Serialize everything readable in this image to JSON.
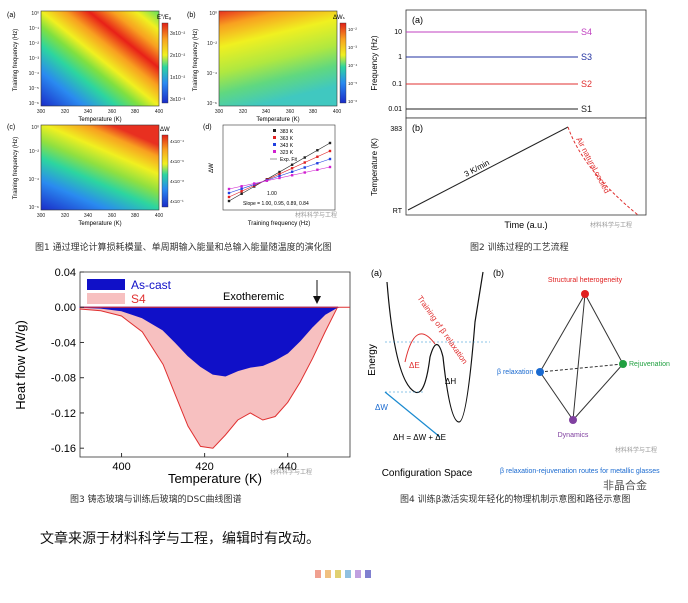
{
  "fig1": {
    "caption": "图1 通过理论计算损耗模量、单周期输入能量和总输入能量随温度的演化图",
    "panels": [
      {
        "tag": "(a)",
        "cbar_label": "E″/Eₐ",
        "cbar_ticks": [
          "3x10⁻²",
          "2x10⁻²",
          "1x10⁻²",
          "3x10⁻³"
        ],
        "xlabel": "Temperature (K)",
        "ylabel": "Training frequency (Hz)"
      },
      {
        "tag": "(b)",
        "cbar_label": "ΔWₛ",
        "cbar_ticks": [
          "10⁻²",
          "10⁻³",
          "10⁻⁴",
          "10⁻⁵",
          "10⁻⁶"
        ],
        "xlabel": "Temperature (K)",
        "ylabel": "Training frequency (Hz)"
      },
      {
        "tag": "(c)",
        "cbar_label": "ΔW",
        "cbar_ticks": [
          "4x10⁻⁴",
          "4x10⁻⁶",
          "4x10⁻⁸",
          "4x10⁻¹"
        ],
        "xlabel": "Temperature (K)",
        "ylabel": "Training frequency (Hz)"
      },
      {
        "tag": "(d)",
        "xlabel": "Training frequency (Hz)",
        "ylabel": "ΔW",
        "slope_text": "Slope = 1.00, 0.95, 0.89, 0.84",
        "one_text": "1.00",
        "exp_fit": "Exp. Fit"
      }
    ],
    "temp_ticks": [
      "300",
      "320",
      "340",
      "360",
      "380",
      "400"
    ],
    "freq_ticks": [
      "10⁰",
      "10⁻¹",
      "10⁻²",
      "10⁻³",
      "10⁻⁴",
      "10⁻⁵",
      "10⁻⁶"
    ],
    "legend": [
      {
        "label": "383 K",
        "color": "#222222"
      },
      {
        "label": "363 K",
        "color": "#e02020"
      },
      {
        "label": "343 K",
        "color": "#2040e0"
      },
      {
        "label": "323 K",
        "color": "#d020d0"
      }
    ],
    "watermark": "材料科学与工程"
  },
  "fig2": {
    "caption": "图2 训练过程的工艺流程",
    "tag_a": "(a)",
    "tag_b": "(b)",
    "ylabel_a": "Frequency (Hz)",
    "ylabel_b": "Temperature (K)",
    "freq_ticks": [
      "10",
      "1",
      "0.1",
      "0.01"
    ],
    "steps": [
      {
        "label": "S4",
        "color": "#c040c0"
      },
      {
        "label": "S3",
        "color": "#2030a0"
      },
      {
        "label": "S2",
        "color": "#e03030"
      },
      {
        "label": "S1",
        "color": "#222222"
      }
    ],
    "temp_top": "383",
    "temp_bottom": "RT",
    "rate": "3 K/min",
    "cool": "Air natural cooled",
    "xlabel": "Time (a.u.)",
    "watermark": "材料科学与工程"
  },
  "fig3": {
    "caption": "图3 铸态玻璃与训练后玻璃的DSC曲线图谱",
    "legend": [
      {
        "label": "As-cast",
        "color": "#1010c8"
      },
      {
        "label": "S4",
        "color": "#f7c0c0"
      }
    ],
    "annotation": "Exotheremic",
    "xlabel": "Temperature (K)",
    "ylabel": "Heat flow (W/g)",
    "watermark": "材料科学与工程"
  },
  "chart_data": {
    "type": "area",
    "title": "",
    "xlabel": "Temperature (K)",
    "ylabel": "Heat flow (W/g)",
    "xlim": [
      390,
      455
    ],
    "ylim": [
      -0.17,
      0.04
    ],
    "x_ticks": [
      400,
      420,
      440
    ],
    "y_ticks": [
      0.04,
      0.0,
      -0.04,
      -0.08,
      -0.12,
      -0.16
    ],
    "x": [
      390,
      395,
      400,
      405,
      410,
      413,
      416,
      419,
      422,
      425,
      428,
      431,
      434,
      437,
      440,
      443,
      446,
      449,
      452
    ],
    "series": [
      {
        "name": "As-cast",
        "values": [
          0.0,
          -0.001,
          -0.004,
          -0.012,
          -0.026,
          -0.04,
          -0.055,
          -0.067,
          -0.076,
          -0.078,
          -0.072,
          -0.068,
          -0.066,
          -0.06,
          -0.052,
          -0.038,
          -0.022,
          -0.008,
          0.0
        ]
      },
      {
        "name": "S4",
        "values": [
          -0.002,
          -0.004,
          -0.01,
          -0.028,
          -0.065,
          -0.1,
          -0.135,
          -0.158,
          -0.16,
          -0.145,
          -0.128,
          -0.12,
          -0.128,
          -0.124,
          -0.108,
          -0.085,
          -0.058,
          -0.028,
          0.0
        ]
      }
    ]
  },
  "fig4": {
    "caption": "图4 训练β激活实现年轻化的物理机制示意图和路径示意图",
    "tag_a": "(a)",
    "tag_b": "(b)",
    "ylabel": "Energy",
    "xlabel": "Configuration Space",
    "training": "Training of β relaxation",
    "dE": "ΔE",
    "dH": "ΔH",
    "dW": "ΔW",
    "eq": "ΔH = ΔW + ΔE",
    "nodes": {
      "top": "Structural heterogeneity",
      "left": "β relaxation",
      "right": "Rejuvenation",
      "bottom": "Dynamics"
    },
    "footer": "β relaxation-rejuvenation routes for metallic glasses",
    "watermark": "材料科学与工程"
  },
  "source_note": "文章来源于材料科学与工程，编辑时有改动。",
  "brand_watermark": "非晶合金",
  "dots": [
    "#f0a090",
    "#f0c080",
    "#e0d070",
    "#90c0e0",
    "#c0a0e0",
    "#8080d0"
  ]
}
